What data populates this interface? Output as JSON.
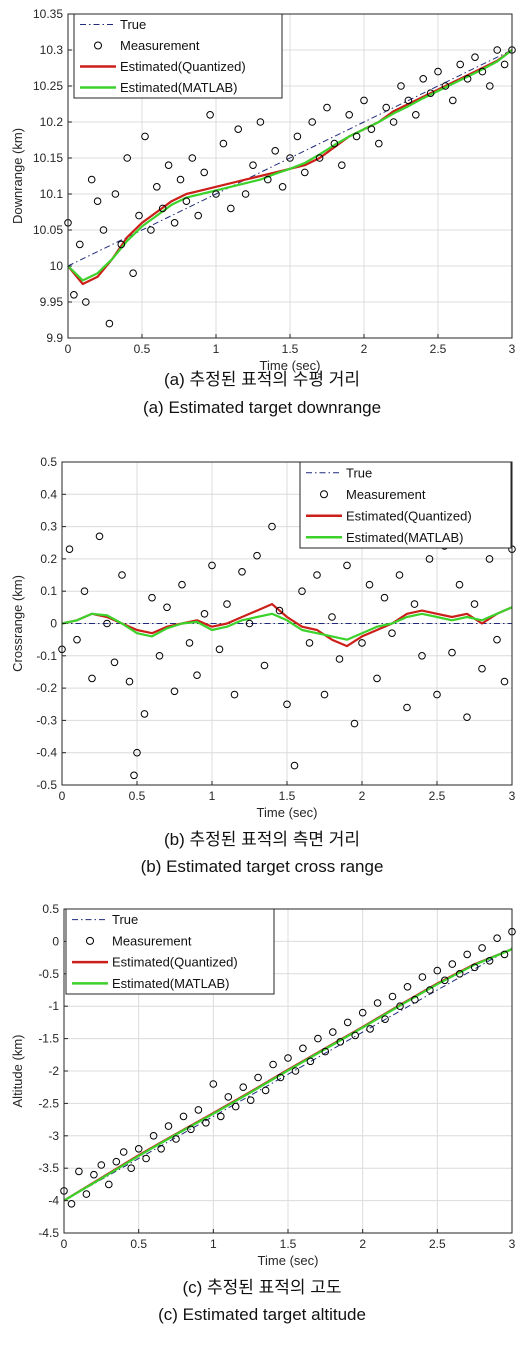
{
  "chart_data": [
    {
      "type": "line",
      "panel": "a",
      "xlabel": "Time (sec)",
      "ylabel": "Downrange (km)",
      "xlim": [
        0,
        3
      ],
      "ylim": [
        9.9,
        10.35
      ],
      "xticks": [
        0,
        0.5,
        1,
        1.5,
        2,
        2.5,
        3
      ],
      "yticks": [
        9.9,
        9.95,
        10,
        10.05,
        10.1,
        10.15,
        10.2,
        10.25,
        10.3,
        10.35
      ],
      "xtick_labels": [
        "0",
        "0.5",
        "1",
        "1.5",
        "2",
        "2.5",
        "3"
      ],
      "ytick_labels": [
        "9.9",
        "9.95",
        "10",
        "10.05",
        "10.1",
        "10.15",
        "10.2",
        "10.25",
        "10.3",
        "10.35"
      ],
      "grid": true,
      "legend_position": "top-left",
      "legend": [
        "True",
        "Measurement",
        "Estimated(Quantized)",
        "Estimated(MATLAB)"
      ],
      "series": [
        {
          "name": "True",
          "style": "dash-dot",
          "color": "#1f2a7a",
          "x": [
            0,
            3
          ],
          "y": [
            10.0,
            10.3
          ]
        },
        {
          "name": "Estimated(Quantized)",
          "style": "solid",
          "color": "#cc1f1a",
          "x": [
            0,
            0.1,
            0.2,
            0.3,
            0.4,
            0.5,
            0.6,
            0.7,
            0.8,
            0.9,
            1.0,
            1.1,
            1.2,
            1.3,
            1.4,
            1.5,
            1.6,
            1.7,
            1.8,
            1.9,
            2.0,
            2.1,
            2.2,
            2.3,
            2.4,
            2.5,
            2.6,
            2.7,
            2.8,
            2.9,
            3.0
          ],
          "y": [
            10.0,
            9.975,
            9.985,
            10.01,
            10.04,
            10.06,
            10.075,
            10.09,
            10.1,
            10.105,
            10.11,
            10.115,
            10.12,
            10.125,
            10.13,
            10.135,
            10.14,
            10.15,
            10.165,
            10.18,
            10.19,
            10.2,
            10.215,
            10.225,
            10.235,
            10.245,
            10.255,
            10.265,
            10.275,
            10.285,
            10.3
          ]
        },
        {
          "name": "Estimated(MATLAB)",
          "style": "solid",
          "color": "#3cd22b",
          "x": [
            0,
            0.1,
            0.2,
            0.3,
            0.4,
            0.5,
            0.6,
            0.7,
            0.8,
            0.9,
            1.0,
            1.1,
            1.2,
            1.3,
            1.4,
            1.5,
            1.6,
            1.7,
            1.8,
            1.9,
            2.0,
            2.1,
            2.2,
            2.3,
            2.4,
            2.5,
            2.6,
            2.7,
            2.8,
            2.9,
            3.0
          ],
          "y": [
            10.0,
            9.98,
            9.99,
            10.01,
            10.035,
            10.055,
            10.07,
            10.085,
            10.095,
            10.1,
            10.105,
            10.11,
            10.115,
            10.12,
            10.128,
            10.135,
            10.143,
            10.155,
            10.168,
            10.18,
            10.19,
            10.2,
            10.212,
            10.222,
            10.233,
            10.243,
            10.253,
            10.263,
            10.273,
            10.284,
            10.3
          ]
        },
        {
          "name": "Measurement",
          "style": "markers",
          "color": "#000000",
          "x": [
            0.0,
            0.04,
            0.08,
            0.12,
            0.16,
            0.2,
            0.24,
            0.28,
            0.32,
            0.36,
            0.4,
            0.44,
            0.48,
            0.52,
            0.56,
            0.6,
            0.64,
            0.68,
            0.72,
            0.76,
            0.8,
            0.84,
            0.88,
            0.92,
            0.96,
            1.0,
            1.05,
            1.1,
            1.15,
            1.2,
            1.25,
            1.3,
            1.35,
            1.4,
            1.45,
            1.5,
            1.55,
            1.6,
            1.65,
            1.7,
            1.75,
            1.8,
            1.85,
            1.9,
            1.95,
            2.0,
            2.05,
            2.1,
            2.15,
            2.2,
            2.25,
            2.3,
            2.35,
            2.4,
            2.45,
            2.5,
            2.55,
            2.6,
            2.65,
            2.7,
            2.75,
            2.8,
            2.85,
            2.9,
            2.95,
            3.0
          ],
          "y": [
            10.06,
            9.96,
            10.03,
            9.95,
            10.12,
            10.09,
            10.05,
            9.92,
            10.1,
            10.03,
            10.15,
            9.99,
            10.07,
            10.18,
            10.05,
            10.11,
            10.08,
            10.14,
            10.06,
            10.12,
            10.09,
            10.15,
            10.07,
            10.13,
            10.21,
            10.1,
            10.17,
            10.08,
            10.19,
            10.1,
            10.14,
            10.2,
            10.12,
            10.16,
            10.11,
            10.15,
            10.18,
            10.13,
            10.2,
            10.15,
            10.22,
            10.17,
            10.14,
            10.21,
            10.18,
            10.23,
            10.19,
            10.17,
            10.22,
            10.2,
            10.25,
            10.23,
            10.21,
            10.26,
            10.24,
            10.27,
            10.25,
            10.23,
            10.28,
            10.26,
            10.29,
            10.27,
            10.25,
            10.3,
            10.28,
            10.3
          ]
        }
      ]
    },
    {
      "type": "line",
      "panel": "b",
      "xlabel": "Time (sec)",
      "ylabel": "Crossrange (km)",
      "xlim": [
        0,
        3
      ],
      "ylim": [
        -0.5,
        0.5
      ],
      "xticks": [
        0,
        0.5,
        1,
        1.5,
        2,
        2.5,
        3
      ],
      "yticks": [
        -0.5,
        -0.4,
        -0.3,
        -0.2,
        -0.1,
        0,
        0.1,
        0.2,
        0.3,
        0.4,
        0.5
      ],
      "xtick_labels": [
        "0",
        "0.5",
        "1",
        "1.5",
        "2",
        "2.5",
        "3"
      ],
      "ytick_labels": [
        "-0.5",
        "-0.4",
        "-0.3",
        "-0.2",
        "-0.1",
        "0",
        "0.1",
        "0.2",
        "0.3",
        "0.4",
        "0.5"
      ],
      "grid": true,
      "legend_position": "top-right",
      "legend": [
        "True",
        "Measurement",
        "Estimated(Quantized)",
        "Estimated(MATLAB)"
      ],
      "series": [
        {
          "name": "True",
          "style": "dash-dot",
          "color": "#1f2a7a",
          "x": [
            0,
            3
          ],
          "y": [
            0,
            0
          ]
        },
        {
          "name": "Estimated(Quantized)",
          "style": "solid",
          "color": "#cc1f1a",
          "x": [
            0,
            0.1,
            0.2,
            0.3,
            0.4,
            0.5,
            0.6,
            0.7,
            0.8,
            0.9,
            1.0,
            1.1,
            1.2,
            1.3,
            1.4,
            1.5,
            1.6,
            1.7,
            1.8,
            1.9,
            2.0,
            2.1,
            2.2,
            2.3,
            2.4,
            2.5,
            2.6,
            2.7,
            2.8,
            2.9,
            3.0
          ],
          "y": [
            0.0,
            0.01,
            0.03,
            0.02,
            0.0,
            -0.02,
            -0.03,
            -0.01,
            0.0,
            0.01,
            -0.01,
            0.0,
            0.02,
            0.04,
            0.06,
            0.02,
            -0.01,
            -0.02,
            -0.05,
            -0.07,
            -0.04,
            -0.02,
            0.0,
            0.03,
            0.04,
            0.03,
            0.02,
            0.03,
            0.0,
            0.03,
            0.05
          ]
        },
        {
          "name": "Estimated(MATLAB)",
          "style": "solid",
          "color": "#3cd22b",
          "x": [
            0,
            0.1,
            0.2,
            0.3,
            0.4,
            0.5,
            0.6,
            0.7,
            0.8,
            0.9,
            1.0,
            1.1,
            1.2,
            1.3,
            1.4,
            1.5,
            1.6,
            1.7,
            1.8,
            1.9,
            2.0,
            2.1,
            2.2,
            2.3,
            2.4,
            2.5,
            2.6,
            2.7,
            2.8,
            2.9,
            3.0
          ],
          "y": [
            0.0,
            0.01,
            0.03,
            0.025,
            0.0,
            -0.03,
            -0.04,
            -0.015,
            0.0,
            0.005,
            -0.02,
            -0.01,
            0.01,
            0.02,
            0.03,
            0.01,
            -0.02,
            -0.03,
            -0.04,
            -0.05,
            -0.03,
            -0.01,
            0.0,
            0.02,
            0.03,
            0.02,
            0.01,
            0.02,
            0.01,
            0.03,
            0.05
          ]
        },
        {
          "name": "Measurement",
          "style": "markers",
          "color": "#000000",
          "x": [
            0.0,
            0.05,
            0.1,
            0.15,
            0.2,
            0.25,
            0.3,
            0.35,
            0.4,
            0.45,
            0.48,
            0.5,
            0.55,
            0.6,
            0.65,
            0.7,
            0.75,
            0.8,
            0.85,
            0.9,
            0.95,
            1.0,
            1.05,
            1.1,
            1.15,
            1.2,
            1.25,
            1.3,
            1.35,
            1.4,
            1.45,
            1.5,
            1.55,
            1.6,
            1.65,
            1.7,
            1.75,
            1.8,
            1.85,
            1.9,
            1.95,
            2.0,
            2.05,
            2.1,
            2.15,
            2.2,
            2.25,
            2.3,
            2.35,
            2.4,
            2.45,
            2.5,
            2.55,
            2.6,
            2.65,
            2.7,
            2.75,
            2.8,
            2.85,
            2.9,
            2.95,
            3.0
          ],
          "y": [
            -0.08,
            0.23,
            -0.05,
            0.1,
            -0.17,
            0.27,
            0.0,
            -0.12,
            0.15,
            -0.18,
            -0.47,
            -0.4,
            -0.28,
            0.08,
            -0.1,
            0.05,
            -0.21,
            0.12,
            -0.06,
            -0.16,
            0.03,
            0.18,
            -0.08,
            0.06,
            -0.22,
            0.16,
            0.0,
            0.21,
            -0.13,
            0.3,
            0.04,
            -0.25,
            -0.44,
            0.1,
            -0.06,
            0.15,
            -0.22,
            0.02,
            -0.11,
            0.18,
            -0.31,
            -0.06,
            0.12,
            -0.17,
            0.08,
            -0.03,
            0.15,
            -0.26,
            0.06,
            -0.1,
            0.2,
            -0.22,
            0.24,
            -0.09,
            0.12,
            -0.29,
            0.06,
            -0.14,
            0.2,
            -0.05,
            -0.18,
            0.23
          ]
        }
      ]
    },
    {
      "type": "line",
      "panel": "c",
      "xlabel": "Time (sec)",
      "ylabel": "Altitude (km)",
      "xlim": [
        0,
        3
      ],
      "ylim": [
        -4.5,
        0.5
      ],
      "xticks": [
        0,
        0.5,
        1,
        1.5,
        2,
        2.5,
        3
      ],
      "yticks": [
        -4.5,
        -4,
        -3.5,
        -3,
        -2.5,
        -2,
        -1.5,
        -1,
        -0.5,
        0,
        0.5
      ],
      "xtick_labels": [
        "0",
        "0.5",
        "1",
        "1.5",
        "2",
        "2.5",
        "3"
      ],
      "ytick_labels": [
        "-4.5",
        "-4",
        "-3.5",
        "-3",
        "-2.5",
        "-2",
        "-1.5",
        "-1",
        "-0.5",
        "0",
        "0.5"
      ],
      "grid": true,
      "legend_position": "top-left",
      "legend": [
        "True",
        "Measurement",
        "Estimated(Quantized)",
        "Estimated(MATLAB)"
      ],
      "series": [
        {
          "name": "True",
          "style": "dash-dot",
          "color": "#1f2a7a",
          "x": [
            0,
            3
          ],
          "y": [
            -4.0,
            -0.1
          ]
        },
        {
          "name": "Estimated(Quantized)",
          "style": "solid",
          "color": "#cc1f1a",
          "x": [
            0,
            0.25,
            0.5,
            0.75,
            1.0,
            1.25,
            1.5,
            1.75,
            2.0,
            2.25,
            2.5,
            2.75,
            3.0
          ],
          "y": [
            -4.0,
            -3.65,
            -3.3,
            -2.97,
            -2.65,
            -2.32,
            -1.98,
            -1.65,
            -1.32,
            -0.98,
            -0.65,
            -0.35,
            -0.12
          ]
        },
        {
          "name": "Estimated(MATLAB)",
          "style": "solid",
          "color": "#3cd22b",
          "x": [
            0,
            0.25,
            0.5,
            0.75,
            1.0,
            1.25,
            1.5,
            1.75,
            2.0,
            2.25,
            2.5,
            2.75,
            3.0
          ],
          "y": [
            -4.0,
            -3.66,
            -3.31,
            -2.98,
            -2.66,
            -2.33,
            -1.99,
            -1.66,
            -1.33,
            -0.99,
            -0.66,
            -0.36,
            -0.12
          ]
        },
        {
          "name": "Measurement",
          "style": "markers",
          "color": "#000000",
          "x": [
            0.0,
            0.05,
            0.1,
            0.15,
            0.2,
            0.25,
            0.3,
            0.35,
            0.4,
            0.45,
            0.5,
            0.55,
            0.6,
            0.65,
            0.7,
            0.75,
            0.8,
            0.85,
            0.9,
            0.95,
            1.0,
            1.05,
            1.1,
            1.15,
            1.2,
            1.25,
            1.3,
            1.35,
            1.4,
            1.45,
            1.5,
            1.55,
            1.6,
            1.65,
            1.7,
            1.75,
            1.8,
            1.85,
            1.9,
            1.95,
            2.0,
            2.05,
            2.1,
            2.15,
            2.2,
            2.25,
            2.3,
            2.35,
            2.4,
            2.45,
            2.5,
            2.55,
            2.6,
            2.65,
            2.7,
            2.75,
            2.8,
            2.85,
            2.9,
            2.95,
            3.0
          ],
          "y": [
            -3.85,
            -4.05,
            -3.55,
            -3.9,
            -3.6,
            -3.45,
            -3.75,
            -3.4,
            -3.25,
            -3.5,
            -3.2,
            -3.35,
            -3.0,
            -3.2,
            -2.85,
            -3.05,
            -2.7,
            -2.9,
            -2.6,
            -2.8,
            -2.2,
            -2.7,
            -2.4,
            -2.55,
            -2.25,
            -2.45,
            -2.1,
            -2.3,
            -1.9,
            -2.1,
            -1.8,
            -2.0,
            -1.65,
            -1.85,
            -1.5,
            -1.7,
            -1.4,
            -1.55,
            -1.25,
            -1.45,
            -1.1,
            -1.35,
            -0.95,
            -1.2,
            -0.85,
            -1.0,
            -0.7,
            -0.9,
            -0.55,
            -0.75,
            -0.45,
            -0.6,
            -0.35,
            -0.5,
            -0.2,
            -0.4,
            -0.1,
            -0.3,
            0.05,
            -0.2,
            0.15
          ]
        }
      ]
    }
  ],
  "captions": {
    "a_korean": "(a) 추정된 표적의 수평 거리",
    "a_english": "(a) Estimated target downrange",
    "b_korean": "(b) 추정된 표적의 측면 거리",
    "b_english": "(b) Estimated target cross range",
    "c_korean": "(c) 추정된 표적의 고도",
    "c_english": "(c) Estimated target altitude"
  }
}
